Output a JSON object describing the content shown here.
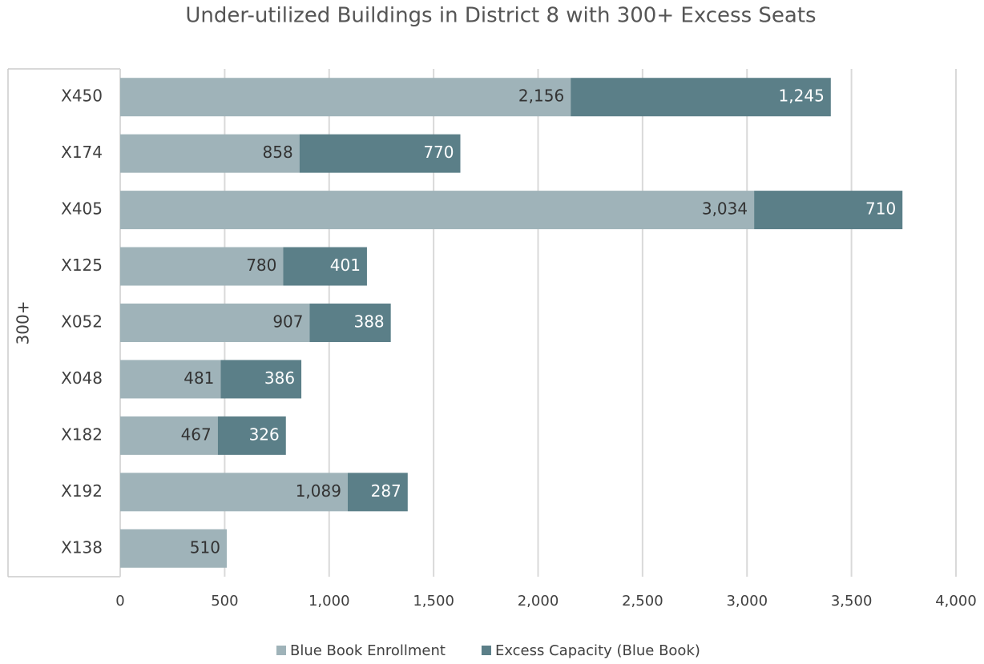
{
  "chart_data": {
    "type": "stacked_bar_horizontal",
    "title": "Under-utilized Buildings in District 8 with 300+ Excess Seats",
    "category_group_label": "300+",
    "categories": [
      "X450",
      "X174",
      "X405",
      "X125",
      "X052",
      "X048",
      "X182",
      "X192",
      "X138"
    ],
    "series": [
      {
        "name": "Blue Book Enrollment",
        "color": "#9fb3b9",
        "values": [
          2156,
          858,
          3034,
          780,
          907,
          481,
          467,
          1089,
          510
        ],
        "value_labels": [
          "2,156",
          "858",
          "3,034",
          "780",
          "907",
          "481",
          "467",
          "1,089",
          "510"
        ]
      },
      {
        "name": "Excess Capacity (Blue Book)",
        "color": "#5b7f88",
        "values": [
          1245,
          770,
          710,
          401,
          388,
          386,
          326,
          287,
          null
        ],
        "value_labels": [
          "1,245",
          "770",
          "710",
          "401",
          "388",
          "386",
          "326",
          "287",
          null
        ]
      }
    ],
    "xlim": [
      0,
      4000
    ],
    "xticks": [
      0,
      500,
      {
        "value": 1000,
        "label": "1,000"
      },
      {
        "value": 1500,
        "label": "1,500"
      },
      {
        "value": 2000,
        "label": "2,000"
      },
      {
        "value": 2500,
        "label": "2,500"
      },
      {
        "value": 3000,
        "label": "3,000"
      },
      {
        "value": 3500,
        "label": "3,500"
      },
      {
        "value": 4000,
        "label": "4,000"
      }
    ],
    "grid": true,
    "legend": "bottom"
  }
}
